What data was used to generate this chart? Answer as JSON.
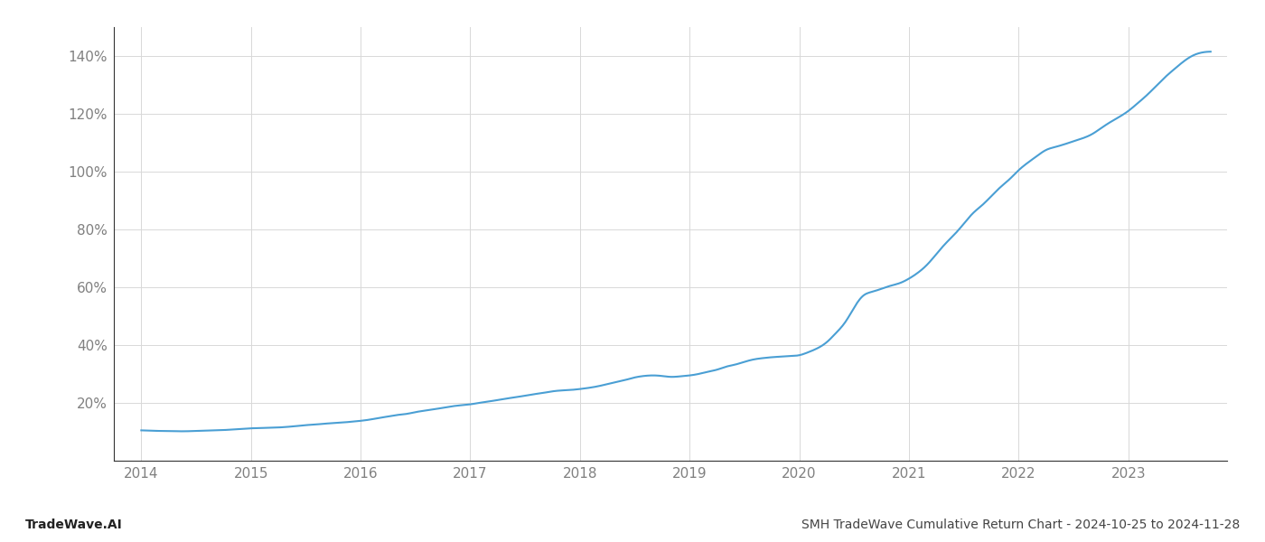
{
  "title": "",
  "footer_left": "TradeWave.AI",
  "footer_right": "SMH TradeWave Cumulative Return Chart - 2024-10-25 to 2024-11-28",
  "line_color": "#4a9fd4",
  "line_width": 1.5,
  "background_color": "#ffffff",
  "grid_color": "#d8d8d8",
  "x_years": [
    2014.0,
    2014.08,
    2014.17,
    2014.25,
    2014.33,
    2014.42,
    2014.5,
    2014.58,
    2014.67,
    2014.75,
    2014.83,
    2014.92,
    2015.0,
    2015.08,
    2015.17,
    2015.25,
    2015.33,
    2015.42,
    2015.5,
    2015.58,
    2015.67,
    2015.75,
    2015.83,
    2015.92,
    2016.0,
    2016.08,
    2016.17,
    2016.25,
    2016.33,
    2016.42,
    2016.5,
    2016.58,
    2016.67,
    2016.75,
    2016.83,
    2016.92,
    2017.0,
    2017.08,
    2017.17,
    2017.25,
    2017.33,
    2017.42,
    2017.5,
    2017.58,
    2017.67,
    2017.75,
    2017.83,
    2017.92,
    2018.0,
    2018.08,
    2018.17,
    2018.25,
    2018.33,
    2018.42,
    2018.5,
    2018.58,
    2018.67,
    2018.75,
    2018.83,
    2018.92,
    2019.0,
    2019.08,
    2019.17,
    2019.25,
    2019.33,
    2019.42,
    2019.5,
    2019.58,
    2019.67,
    2019.75,
    2019.83,
    2019.92,
    2020.0,
    2020.08,
    2020.17,
    2020.25,
    2020.33,
    2020.42,
    2020.5,
    2020.58,
    2020.67,
    2020.75,
    2020.83,
    2020.92,
    2021.0,
    2021.08,
    2021.17,
    2021.25,
    2021.33,
    2021.42,
    2021.5,
    2021.58,
    2021.67,
    2021.75,
    2021.83,
    2021.92,
    2022.0,
    2022.08,
    2022.17,
    2022.25,
    2022.33,
    2022.42,
    2022.5,
    2022.58,
    2022.67,
    2022.75,
    2022.83,
    2022.92,
    2023.0,
    2023.08,
    2023.17,
    2023.25,
    2023.33,
    2023.42,
    2023.5,
    2023.58,
    2023.67,
    2023.75
  ],
  "y_values": [
    10.5,
    10.4,
    10.3,
    10.3,
    10.2,
    10.2,
    10.3,
    10.4,
    10.5,
    10.6,
    10.8,
    11.0,
    11.2,
    11.3,
    11.4,
    11.5,
    11.7,
    12.0,
    12.3,
    12.5,
    12.8,
    13.0,
    13.2,
    13.5,
    13.8,
    14.2,
    14.8,
    15.3,
    15.8,
    16.2,
    16.8,
    17.3,
    17.8,
    18.3,
    18.8,
    19.2,
    19.5,
    20.0,
    20.5,
    21.0,
    21.5,
    22.0,
    22.5,
    23.0,
    23.5,
    24.0,
    24.3,
    24.5,
    24.8,
    25.2,
    25.8,
    26.5,
    27.2,
    28.0,
    28.8,
    29.3,
    29.5,
    29.3,
    29.0,
    29.2,
    29.5,
    30.0,
    30.8,
    31.5,
    32.5,
    33.3,
    34.2,
    35.0,
    35.5,
    35.8,
    36.0,
    36.2,
    36.5,
    37.5,
    39.0,
    41.0,
    44.0,
    48.0,
    53.0,
    57.0,
    58.5,
    59.5,
    60.5,
    61.5,
    63.0,
    65.0,
    68.0,
    71.5,
    75.0,
    78.5,
    82.0,
    85.5,
    88.5,
    91.5,
    94.5,
    97.5,
    100.5,
    103.0,
    105.5,
    107.5,
    108.5,
    109.5,
    110.5,
    111.5,
    113.0,
    115.0,
    117.0,
    119.0,
    121.0,
    123.5,
    126.5,
    129.5,
    132.5,
    135.5,
    138.0,
    140.0,
    141.2,
    141.5
  ],
  "xlim": [
    2013.75,
    2023.9
  ],
  "ylim": [
    0,
    150
  ],
  "yticks": [
    20,
    40,
    60,
    80,
    100,
    120,
    140
  ],
  "xticks": [
    2014,
    2015,
    2016,
    2017,
    2018,
    2019,
    2020,
    2021,
    2022,
    2023
  ],
  "tick_label_color": "#808080",
  "tick_label_size": 11,
  "footer_fontsize": 10,
  "footer_left_color": "#222222",
  "footer_right_color": "#444444"
}
